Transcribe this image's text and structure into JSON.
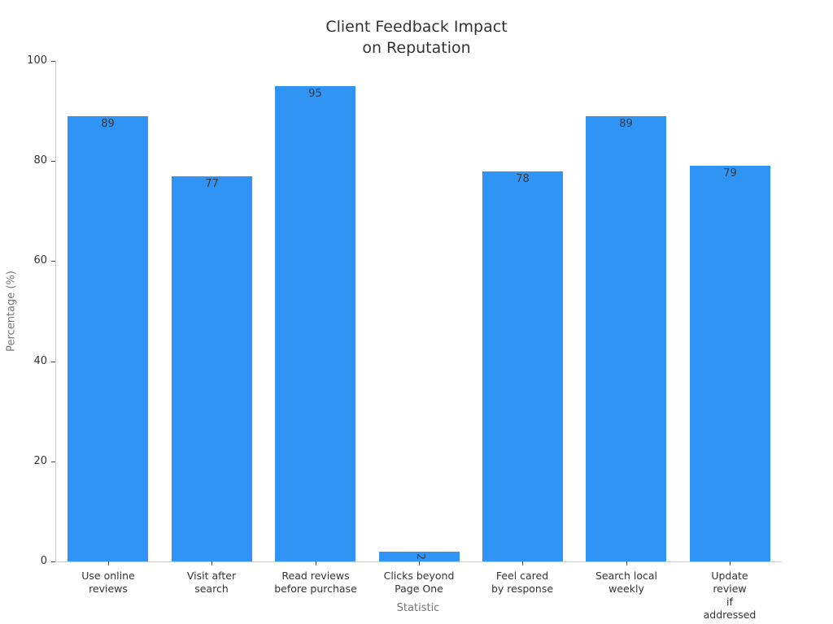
{
  "chart_data": {
    "type": "bar",
    "title": "Client Feedback Impact\non Reputation",
    "xlabel": "Statistic",
    "ylabel": "Percentage (%)",
    "categories": [
      "Use online\nreviews",
      "Visit after\nsearch",
      "Read reviews\nbefore purchase",
      "Clicks beyond\nPage One",
      "Feel cared\nby response",
      "Search local\nweekly",
      "Update review\nif addressed"
    ],
    "values": [
      89,
      77,
      95,
      2,
      78,
      89,
      79
    ],
    "yticks": [
      0,
      20,
      40,
      60,
      80,
      100
    ],
    "ylim": [
      0,
      100
    ],
    "bar_color": "#3094F5",
    "value_label_color": "#3a3a3a",
    "grid": false,
    "legend_position": "none"
  }
}
